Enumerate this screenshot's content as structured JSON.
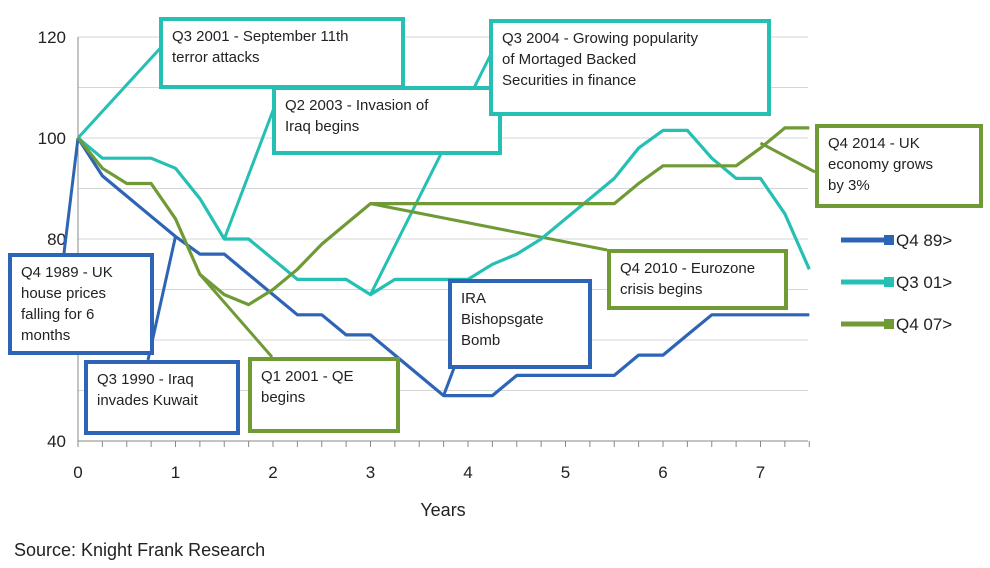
{
  "chart_data": {
    "type": "line",
    "title": "",
    "xlabel": "Years",
    "ylabel": "",
    "xlim": [
      0,
      7.5
    ],
    "ylim": [
      40,
      120
    ],
    "x_ticks": [
      "0",
      "1",
      "2",
      "3",
      "4",
      "5",
      "6",
      "7"
    ],
    "y_ticks": [
      "40",
      "80",
      "100",
      "120"
    ],
    "grid": true,
    "legend_position": "right",
    "series": [
      {
        "name": "Q4 89>",
        "color": "#2e64b5",
        "x": [
          0,
          0.25,
          0.5,
          0.75,
          1.0,
          1.25,
          1.5,
          1.75,
          2.0,
          2.25,
          2.5,
          2.75,
          3.0,
          3.25,
          3.5,
          3.75,
          4.0,
          4.25,
          4.5,
          4.75,
          5.0,
          5.25,
          5.5,
          5.75,
          6.0,
          6.25,
          6.5,
          6.75,
          7.0,
          7.25,
          7.5
        ],
        "values": [
          100,
          92.5,
          88.5,
          84.5,
          80.5,
          77,
          77,
          73,
          69,
          65,
          65,
          61,
          61,
          57,
          53,
          49,
          49,
          49,
          53,
          53,
          53,
          53,
          53,
          57,
          57,
          61,
          65,
          65,
          65,
          65,
          65
        ]
      },
      {
        "name": "Q3 01>",
        "color": "#25c0b3",
        "x": [
          0,
          0.25,
          0.5,
          0.75,
          1.0,
          1.25,
          1.5,
          1.75,
          2.0,
          2.25,
          2.5,
          2.75,
          3.0,
          3.25,
          3.5,
          3.75,
          4.0,
          4.25,
          4.5,
          4.75,
          5.0,
          5.25,
          5.5,
          5.75,
          6.0,
          6.25,
          6.5,
          6.75,
          7.0,
          7.25,
          7.5
        ],
        "values": [
          100,
          96,
          96,
          96,
          94,
          88,
          80,
          80,
          76,
          72,
          72,
          72,
          69,
          72,
          72,
          72,
          72,
          75,
          77,
          80,
          84,
          88,
          92,
          98,
          101.5,
          101.5,
          96,
          92,
          92,
          85,
          74
        ]
      },
      {
        "name": "Q4 07>",
        "color": "#6f9a35",
        "x": [
          0,
          0.25,
          0.5,
          0.75,
          1.0,
          1.25,
          1.5,
          1.75,
          2.0,
          2.25,
          2.5,
          2.75,
          3.0,
          3.25,
          3.5,
          3.75,
          4.0,
          4.25,
          4.5,
          4.75,
          5.0,
          5.25,
          5.5,
          5.75,
          6.0,
          6.25,
          6.5,
          6.75,
          7.0,
          7.25,
          7.5
        ],
        "values": [
          100,
          94,
          91,
          91,
          84,
          73,
          69,
          67,
          70,
          74,
          79,
          83,
          87,
          87,
          87,
          87,
          87,
          87,
          87,
          87,
          87,
          87,
          87,
          91,
          94.5,
          94.5,
          94.5,
          94.5,
          98,
          102,
          102
        ]
      }
    ],
    "annotations": [
      {
        "text": "Q3 2001 - September 11th\nterror attacks",
        "color": "#25c0b3"
      },
      {
        "text": "Q2 2003 - Invasion of\nIraq begins",
        "color": "#25c0b3"
      },
      {
        "text": "Q3 2004 - Growing popularity\nof Mortaged Backed\nSecurities in finance",
        "color": "#25c0b3"
      },
      {
        "text": "Q4 2014 - UK\neconomy grows\nby 3%",
        "color": "#6f9a35"
      },
      {
        "text": "Q4 1989 - UK\nhouse prices\nfalling for 6\nmonths",
        "color": "#2e64b5"
      },
      {
        "text": "Q3 1990 - Iraq\ninvades Kuwait",
        "color": "#2e64b5"
      },
      {
        "text": "Q1 2001 - QE\nbegins",
        "color": "#6f9a35"
      },
      {
        "text": "IRA\nBishopsgate\nBomb",
        "color": "#2e64b5"
      },
      {
        "text": "Q4 2010 - Eurozone\ncrisis begins",
        "color": "#6f9a35"
      }
    ]
  },
  "source": "Source: Knight Frank Research"
}
